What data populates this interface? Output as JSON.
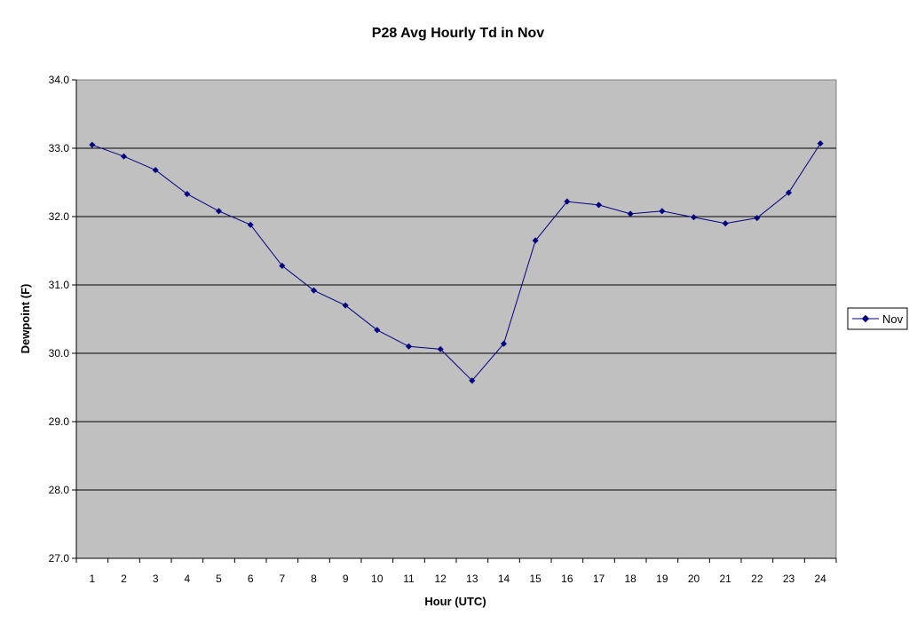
{
  "chart_data": {
    "type": "line",
    "title": "P28 Avg Hourly Td in Nov",
    "xlabel": "Hour (UTC)",
    "ylabel": "Dewpoint (F)",
    "ylim": [
      27.0,
      34.0
    ],
    "yticks": [
      "27.0",
      "28.0",
      "29.0",
      "30.0",
      "31.0",
      "32.0",
      "33.0",
      "34.0"
    ],
    "categories": [
      "1",
      "2",
      "3",
      "4",
      "5",
      "6",
      "7",
      "8",
      "9",
      "10",
      "11",
      "12",
      "13",
      "14",
      "15",
      "16",
      "17",
      "18",
      "19",
      "20",
      "21",
      "22",
      "23",
      "24"
    ],
    "series": [
      {
        "name": "Nov",
        "values": [
          33.05,
          32.88,
          32.68,
          32.33,
          32.08,
          31.88,
          31.28,
          30.92,
          30.7,
          30.34,
          30.1,
          30.06,
          29.6,
          30.14,
          31.65,
          32.22,
          32.17,
          32.04,
          32.08,
          31.99,
          31.9,
          31.98,
          32.35,
          33.07
        ]
      }
    ],
    "grid": "horizontal",
    "legend_position": "right",
    "colors": {
      "plot_background": "#c0c0c0",
      "series_line": "#000080",
      "gridline": "#000000"
    }
  }
}
